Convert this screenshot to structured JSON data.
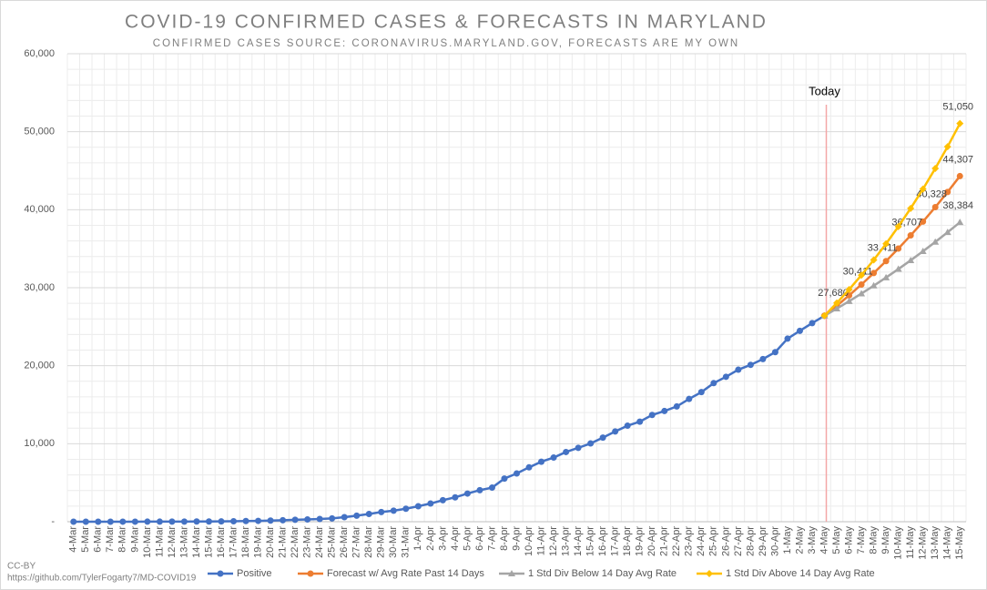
{
  "chart_data": {
    "type": "line",
    "title": "COVID-19 CONFIRMED CASES & FORECASTS IN MARYLAND",
    "subtitle": "CONFIRMED CASES SOURCE: CORONAVIRUS.MARYLAND.GOV, FORECASTS ARE MY OWN",
    "annotation": "Today",
    "annotation_category": "4-May",
    "footer": [
      "CC-BY",
      "https://github.com/TylerFogarty7/MD-COVID19"
    ],
    "categories": [
      "4-Mar",
      "5-Mar",
      "6-Mar",
      "7-Mar",
      "8-Mar",
      "9-Mar",
      "10-Mar",
      "11-Mar",
      "12-Mar",
      "13-Mar",
      "14-Mar",
      "15-Mar",
      "16-Mar",
      "17-Mar",
      "18-Mar",
      "19-Mar",
      "20-Mar",
      "21-Mar",
      "22-Mar",
      "23-Mar",
      "24-Mar",
      "25-Mar",
      "26-Mar",
      "27-Mar",
      "28-Mar",
      "29-Mar",
      "30-Mar",
      "31-Mar",
      "1-Apr",
      "2-Apr",
      "3-Apr",
      "4-Apr",
      "5-Apr",
      "6-Apr",
      "7-Apr",
      "8-Apr",
      "9-Apr",
      "10-Apr",
      "11-Apr",
      "12-Apr",
      "13-Apr",
      "14-Apr",
      "15-Apr",
      "16-Apr",
      "17-Apr",
      "18-Apr",
      "19-Apr",
      "20-Apr",
      "21-Apr",
      "22-Apr",
      "23-Apr",
      "24-Apr",
      "25-Apr",
      "26-Apr",
      "27-Apr",
      "28-Apr",
      "29-Apr",
      "30-Apr",
      "1-May",
      "2-May",
      "3-May",
      "4-May",
      "5-May",
      "6-May",
      "7-May",
      "8-May",
      "9-May",
      "10-May",
      "11-May",
      "12-May",
      "13-May",
      "14-May",
      "15-May"
    ],
    "series": [
      {
        "name": "Positive",
        "color": "#4472c4",
        "marker": "circle",
        "values": [
          0,
          3,
          3,
          3,
          5,
          5,
          8,
          9,
          12,
          17,
          26,
          32,
          37,
          57,
          85,
          107,
          149,
          190,
          244,
          288,
          349,
          423,
          580,
          774,
          992,
          1239,
          1413,
          1660,
          1985,
          2331,
          2758,
          3125,
          3609,
          4045,
          4371,
          5529,
          6185,
          6968,
          7694,
          8225,
          8936,
          9472,
          10032,
          10784,
          11572,
          12308,
          12830,
          13684,
          14193,
          14775,
          15737,
          16616,
          17766,
          18581,
          19487,
          20113,
          20849,
          21742,
          23472,
          24473,
          25462,
          26408,
          null,
          null,
          null,
          null,
          null,
          null,
          null,
          null,
          null,
          null,
          null
        ]
      },
      {
        "name": "Forecast w/ Avg Rate Past 14 Days",
        "color": "#ed7d31",
        "marker": "circle",
        "values": [
          null,
          null,
          null,
          null,
          null,
          null,
          null,
          null,
          null,
          null,
          null,
          null,
          null,
          null,
          null,
          null,
          null,
          null,
          null,
          null,
          null,
          null,
          null,
          null,
          null,
          null,
          null,
          null,
          null,
          null,
          null,
          null,
          null,
          null,
          null,
          null,
          null,
          null,
          null,
          null,
          null,
          null,
          null,
          null,
          null,
          null,
          null,
          null,
          null,
          null,
          null,
          null,
          null,
          null,
          null,
          null,
          null,
          null,
          null,
          null,
          null,
          26408,
          27680,
          29014,
          30411,
          31876,
          33411,
          35021,
          36707,
          38475,
          40328,
          42270,
          44307
        ],
        "value_labels": [
          null,
          null,
          null,
          null,
          null,
          null,
          null,
          null,
          null,
          null,
          null,
          null,
          null,
          null,
          null,
          null,
          null,
          null,
          null,
          null,
          null,
          null,
          null,
          null,
          null,
          null,
          null,
          null,
          null,
          null,
          null,
          null,
          null,
          null,
          null,
          null,
          null,
          null,
          null,
          null,
          null,
          null,
          null,
          null,
          null,
          null,
          null,
          null,
          null,
          null,
          null,
          null,
          null,
          null,
          null,
          null,
          null,
          null,
          null,
          null,
          null,
          null,
          "27,680",
          null,
          "30,411",
          null,
          "33,411",
          null,
          "36,707",
          null,
          "40,328",
          null,
          "44,307"
        ]
      },
      {
        "name": "1 Std Div Below 14 Day Avg Rate",
        "color": "#a5a5a5",
        "marker": "triangle",
        "values": [
          null,
          null,
          null,
          null,
          null,
          null,
          null,
          null,
          null,
          null,
          null,
          null,
          null,
          null,
          null,
          null,
          null,
          null,
          null,
          null,
          null,
          null,
          null,
          null,
          null,
          null,
          null,
          null,
          null,
          null,
          null,
          null,
          null,
          null,
          null,
          null,
          null,
          null,
          null,
          null,
          null,
          null,
          null,
          null,
          null,
          null,
          null,
          null,
          null,
          null,
          null,
          null,
          null,
          null,
          null,
          null,
          null,
          null,
          null,
          null,
          null,
          26408,
          27322,
          28267,
          29245,
          30257,
          31304,
          32388,
          33508,
          34668,
          35867,
          37108,
          38384
        ],
        "value_labels": [
          null,
          null,
          null,
          null,
          null,
          null,
          null,
          null,
          null,
          null,
          null,
          null,
          null,
          null,
          null,
          null,
          null,
          null,
          null,
          null,
          null,
          null,
          null,
          null,
          null,
          null,
          null,
          null,
          null,
          null,
          null,
          null,
          null,
          null,
          null,
          null,
          null,
          null,
          null,
          null,
          null,
          null,
          null,
          null,
          null,
          null,
          null,
          null,
          null,
          null,
          null,
          null,
          null,
          null,
          null,
          null,
          null,
          null,
          null,
          null,
          null,
          null,
          null,
          null,
          null,
          null,
          null,
          null,
          null,
          null,
          null,
          null,
          "38,384"
        ]
      },
      {
        "name": "1 Std Div Above 14 Day Avg Rate",
        "color": "#ffc000",
        "marker": "diamond",
        "values": [
          null,
          null,
          null,
          null,
          null,
          null,
          null,
          null,
          null,
          null,
          null,
          null,
          null,
          null,
          null,
          null,
          null,
          null,
          null,
          null,
          null,
          null,
          null,
          null,
          null,
          null,
          null,
          null,
          null,
          null,
          null,
          null,
          null,
          null,
          null,
          null,
          null,
          null,
          null,
          null,
          null,
          null,
          null,
          null,
          null,
          null,
          null,
          null,
          null,
          null,
          null,
          null,
          null,
          null,
          null,
          null,
          null,
          null,
          null,
          null,
          null,
          26408,
          28039,
          29771,
          31610,
          33562,
          35635,
          37836,
          40173,
          42654,
          45289,
          48086,
          51050
        ],
        "value_labels": [
          null,
          null,
          null,
          null,
          null,
          null,
          null,
          null,
          null,
          null,
          null,
          null,
          null,
          null,
          null,
          null,
          null,
          null,
          null,
          null,
          null,
          null,
          null,
          null,
          null,
          null,
          null,
          null,
          null,
          null,
          null,
          null,
          null,
          null,
          null,
          null,
          null,
          null,
          null,
          null,
          null,
          null,
          null,
          null,
          null,
          null,
          null,
          null,
          null,
          null,
          null,
          null,
          null,
          null,
          null,
          null,
          null,
          null,
          null,
          null,
          null,
          null,
          null,
          null,
          null,
          null,
          null,
          null,
          null,
          null,
          null,
          null,
          "51,050"
        ]
      }
    ],
    "ylim": [
      0,
      60000
    ],
    "yticks": [
      {
        "value": 0,
        "label": "-"
      },
      {
        "value": 10000,
        "label": "10,000"
      },
      {
        "value": 20000,
        "label": "20,000"
      },
      {
        "value": 30000,
        "label": "30,000"
      },
      {
        "value": 40000,
        "label": "40,000"
      },
      {
        "value": 50000,
        "label": "50,000"
      },
      {
        "value": 60000,
        "label": "60,000"
      }
    ],
    "grid": true,
    "legend": "bottom"
  }
}
